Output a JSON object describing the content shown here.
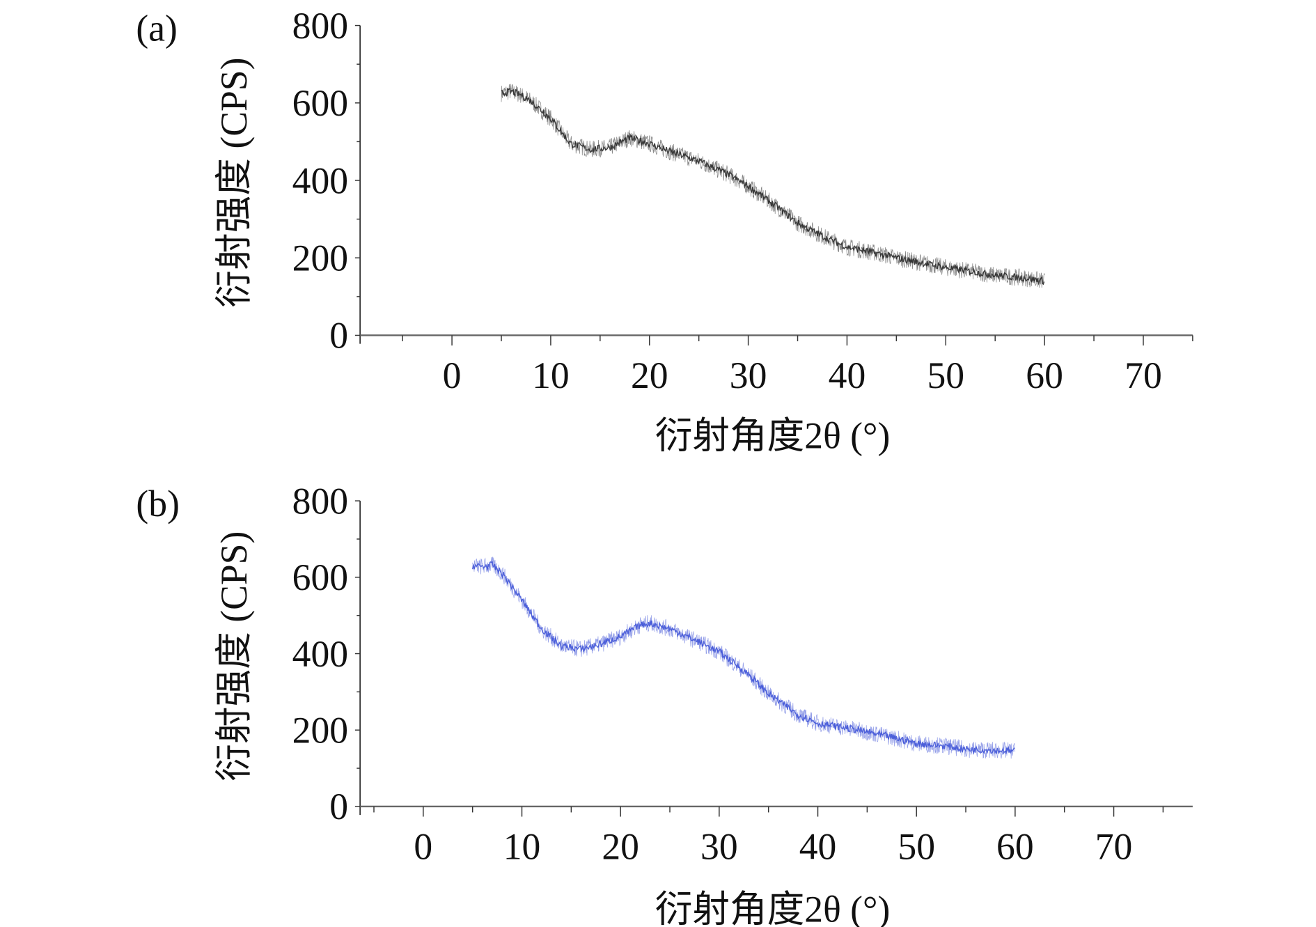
{
  "chart_data": [
    {
      "type": "line",
      "panel_label": "(a)",
      "xlabel": "衍射角度2θ (°)",
      "ylabel": "衍射强度 (CPS)",
      "xlim": [
        -9.3,
        75
      ],
      "ylim": [
        0,
        800
      ],
      "xticks": [
        0,
        10,
        20,
        30,
        40,
        50,
        60,
        70
      ],
      "yticks": [
        0,
        200,
        400,
        600,
        800
      ],
      "grid": false,
      "series": [
        {
          "name": "a",
          "color": "#222222",
          "x": [
            5,
            6,
            7,
            8,
            10,
            12,
            14,
            16,
            18,
            20,
            22,
            25,
            28,
            30,
            33,
            35,
            38,
            40,
            43,
            45,
            48,
            50,
            53,
            55,
            58,
            60
          ],
          "y": [
            625,
            630,
            620,
            605,
            560,
            495,
            480,
            485,
            510,
            495,
            475,
            450,
            415,
            385,
            330,
            290,
            250,
            228,
            212,
            200,
            185,
            175,
            163,
            155,
            148,
            140
          ]
        }
      ]
    },
    {
      "type": "line",
      "panel_label": "(b)",
      "xlabel": "衍射角度2θ (°)",
      "ylabel": "衍射强度 (CPS)",
      "xlim": [
        -6.4,
        78
      ],
      "ylim": [
        0,
        800
      ],
      "xticks": [
        0,
        10,
        20,
        30,
        40,
        50,
        60,
        70
      ],
      "yticks": [
        0,
        200,
        400,
        600,
        800
      ],
      "grid": false,
      "series": [
        {
          "name": "b",
          "color": "#3a4fd6",
          "x": [
            5,
            6,
            7,
            8,
            10,
            12,
            14,
            16,
            18,
            20,
            22,
            23,
            25,
            28,
            30,
            33,
            35,
            38,
            40,
            43,
            45,
            48,
            50,
            53,
            55,
            58,
            60
          ],
          "y": [
            630,
            628,
            632,
            610,
            540,
            465,
            420,
            412,
            425,
            445,
            475,
            480,
            465,
            430,
            405,
            345,
            295,
            240,
            218,
            205,
            195,
            178,
            165,
            158,
            150,
            147,
            145
          ]
        }
      ]
    }
  ]
}
